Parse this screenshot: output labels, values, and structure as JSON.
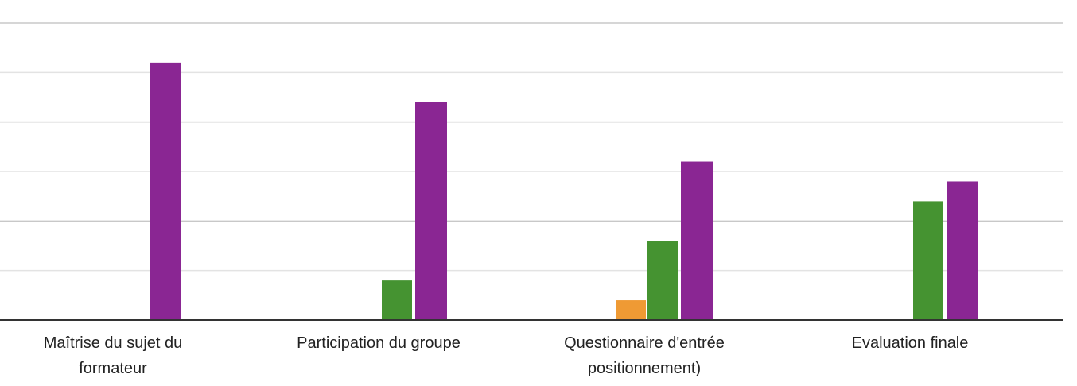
{
  "chart_data": {
    "type": "bar",
    "categories": [
      [
        "Maîtrise du sujet du",
        "formateur"
      ],
      [
        "Participation du groupe"
      ],
      [
        "Questionnaire d'entrée",
        "positionnement)"
      ],
      [
        "Evaluation finale"
      ]
    ],
    "series": [
      {
        "color": "#ef9a34",
        "values": [
          0,
          0,
          1,
          0
        ]
      },
      {
        "color": "#459331",
        "values": [
          0,
          2,
          4,
          6
        ]
      },
      {
        "color": "#8a2693",
        "values": [
          13,
          11,
          8,
          7
        ]
      }
    ],
    "ylim": [
      0,
      15
    ],
    "ystep": 2.5,
    "grid": true,
    "legend": "none"
  }
}
